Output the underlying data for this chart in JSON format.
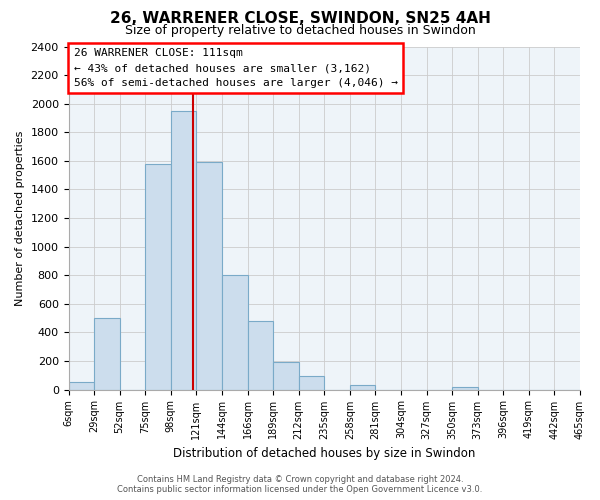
{
  "title": "26, WARRENER CLOSE, SWINDON, SN25 4AH",
  "subtitle": "Size of property relative to detached houses in Swindon",
  "xlabel": "Distribution of detached houses by size in Swindon",
  "ylabel": "Number of detached properties",
  "bin_labels": [
    "6sqm",
    "29sqm",
    "52sqm",
    "75sqm",
    "98sqm",
    "121sqm",
    "144sqm",
    "166sqm",
    "189sqm",
    "212sqm",
    "235sqm",
    "258sqm",
    "281sqm",
    "304sqm",
    "327sqm",
    "350sqm",
    "373sqm",
    "396sqm",
    "419sqm",
    "442sqm",
    "465sqm"
  ],
  "bin_centers": [
    0,
    1,
    2,
    3,
    4,
    5,
    6,
    7,
    8,
    9,
    10,
    11,
    12,
    13,
    14,
    15,
    16,
    17,
    18,
    19,
    20
  ],
  "bar_heights": [
    50,
    500,
    0,
    1580,
    1950,
    1590,
    800,
    480,
    190,
    95,
    0,
    30,
    0,
    0,
    0,
    20,
    0,
    0,
    0,
    0
  ],
  "bar_color": "#ccdded",
  "bar_edgecolor": "#7aaac8",
  "property_bin": 4.35,
  "property_line_color": "#cc0000",
  "ylim": [
    0,
    2400
  ],
  "yticks": [
    0,
    200,
    400,
    600,
    800,
    1000,
    1200,
    1400,
    1600,
    1800,
    2000,
    2200,
    2400
  ],
  "annotation_title": "26 WARRENER CLOSE: 111sqm",
  "annotation_line1": "← 43% of detached houses are smaller (3,162)",
  "annotation_line2": "56% of semi-detached houses are larger (4,046) →",
  "footer1": "Contains HM Land Registry data © Crown copyright and database right 2024.",
  "footer2": "Contains public sector information licensed under the Open Government Licence v3.0.",
  "background_color": "#ffffff",
  "grid_color": "#cccccc",
  "plot_bg_color": "#eef4f9"
}
